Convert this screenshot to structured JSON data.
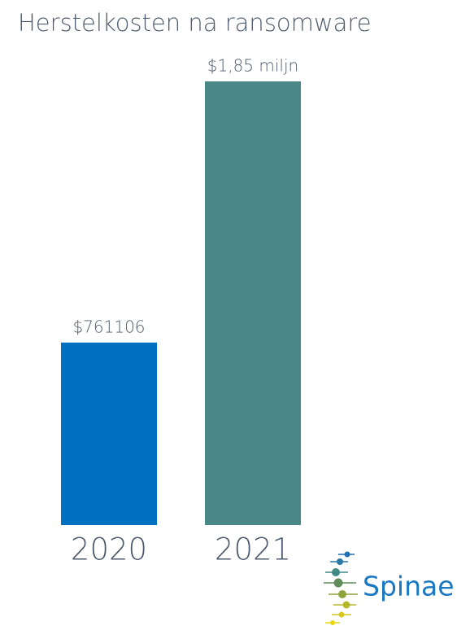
{
  "chart_data": {
    "type": "bar",
    "title": "Herstelkosten na ransomware",
    "categories": [
      "2020",
      "2021"
    ],
    "values": [
      761106,
      1850000
    ],
    "value_labels": [
      "$761106",
      "$1,85 miljn"
    ],
    "colors": [
      "#0070c0",
      "#4a8787"
    ]
  },
  "logo_text": "Spinae"
}
